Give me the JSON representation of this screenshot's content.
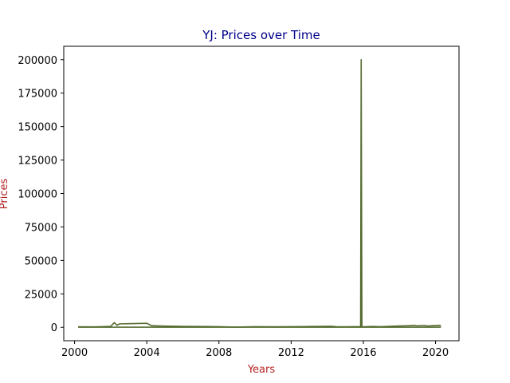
{
  "chart_data": {
    "type": "line",
    "title": "YJ: Prices over Time",
    "xlabel": "Years",
    "ylabel": "Prices",
    "xlim": [
      1999.4,
      2021.3
    ],
    "ylim": [
      -10000,
      210000
    ],
    "x_ticks": [
      2000,
      2004,
      2008,
      2012,
      2016,
      2020
    ],
    "x_tick_labels": [
      "2000",
      "2004",
      "2008",
      "2012",
      "2016",
      "2020"
    ],
    "y_ticks": [
      0,
      25000,
      50000,
      75000,
      100000,
      125000,
      150000,
      175000,
      200000
    ],
    "y_tick_labels": [
      "0",
      "25000",
      "50000",
      "75000",
      "100000",
      "125000",
      "150000",
      "175000",
      "200000"
    ],
    "grid": false,
    "legend": "none",
    "colors": {
      "line": "#556b2f",
      "title": "#00008b",
      "axis_label": "#b22222",
      "axes": "#000000"
    },
    "series": [
      {
        "x": [
          2000.2,
          2001.0,
          2002.0,
          2002.2,
          2002.35,
          2002.5,
          2003.0,
          2004.0,
          2004.25,
          2004.3,
          2005.0,
          2006.0,
          2007.0,
          2008.0,
          2008.9,
          2009.5,
          2010.0,
          2011.0,
          2012.0,
          2013.0,
          2014.2,
          2014.5,
          2015.0,
          2015.5,
          2015.85,
          2015.88,
          2015.92,
          2016.0,
          2016.5,
          2017.0,
          2017.5,
          2018.0,
          2018.5,
          2018.8,
          2019.0,
          2019.3,
          2019.6,
          2019.9,
          2020.2,
          2020.3
        ],
        "y": [
          400,
          300,
          700,
          3500,
          1500,
          2600,
          2700,
          3000,
          1400,
          1200,
          900,
          700,
          600,
          500,
          200,
          300,
          500,
          400,
          500,
          600,
          800,
          500,
          400,
          500,
          500,
          200000,
          500,
          400,
          600,
          500,
          800,
          1000,
          1200,
          1500,
          1100,
          1400,
          1000,
          1300,
          1500,
          1200
        ]
      },
      {
        "x": [
          2000.2,
          2004.0,
          2008.0,
          2012.0,
          2016.0,
          2020.3
        ],
        "y": [
          100,
          100,
          100,
          100,
          100,
          100
        ]
      }
    ]
  }
}
